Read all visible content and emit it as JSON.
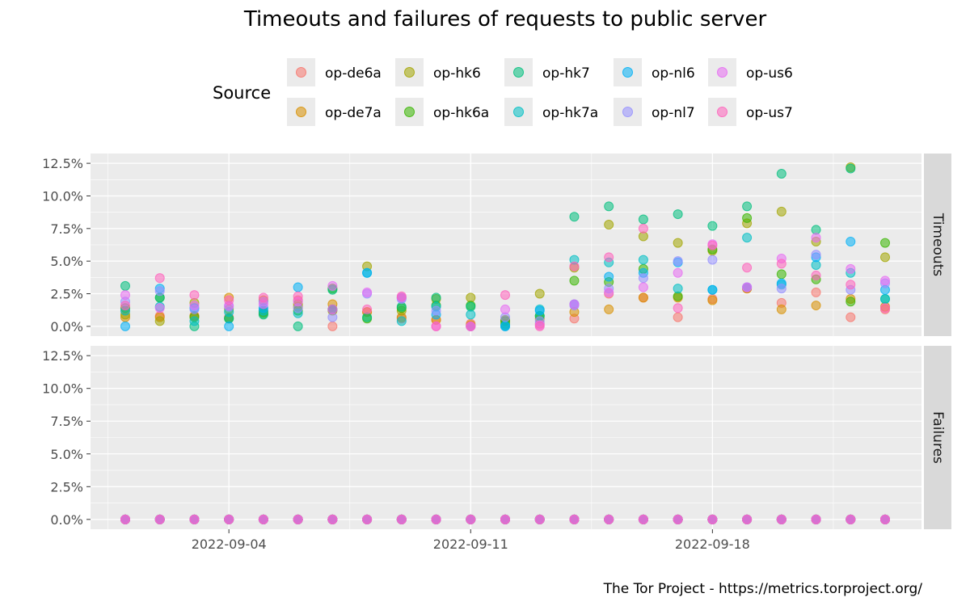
{
  "chart_data": {
    "type": "scatter",
    "title": "Timeouts and failures of requests to public server",
    "caption": "The Tor Project - https://metrics.torproject.org/",
    "legend": {
      "title": "Source",
      "placement": "top",
      "entries": [
        {
          "name": "op-de6a",
          "color": "#F8766D"
        },
        {
          "name": "op-de7a",
          "color": "#D89000"
        },
        {
          "name": "op-hk6",
          "color": "#A3A500"
        },
        {
          "name": "op-hk6a",
          "color": "#39B600"
        },
        {
          "name": "op-hk7",
          "color": "#00BF7D"
        },
        {
          "name": "op-hk7a",
          "color": "#00BFC4"
        },
        {
          "name": "op-nl6",
          "color": "#00B0F6"
        },
        {
          "name": "op-nl7",
          "color": "#9590FF"
        },
        {
          "name": "op-us6",
          "color": "#E76BF3"
        },
        {
          "name": "op-us7",
          "color": "#FF62BC"
        }
      ]
    },
    "x_dates": [
      "2022-09-01",
      "2022-09-02",
      "2022-09-03",
      "2022-09-04",
      "2022-09-05",
      "2022-09-06",
      "2022-09-07",
      "2022-09-08",
      "2022-09-09",
      "2022-09-10",
      "2022-09-11",
      "2022-09-12",
      "2022-09-13",
      "2022-09-14",
      "2022-09-15",
      "2022-09-16",
      "2022-09-17",
      "2022-09-18",
      "2022-09-19",
      "2022-09-20",
      "2022-09-21",
      "2022-09-22",
      "2022-09-23"
    ],
    "x_ticks": [
      "2022-09-04",
      "2022-09-11",
      "2022-09-18"
    ],
    "y_ticks": [
      "0.0%",
      "2.5%",
      "5.0%",
      "7.5%",
      "10.0%",
      "12.5%"
    ],
    "ylim": [
      0,
      0.125
    ],
    "grid": true,
    "panels": [
      {
        "label": "Timeouts",
        "series": [
          {
            "name": "op-de6a",
            "values": [
              0.012,
              0.008,
              0.008,
              0.007,
              0.012,
              0.02,
              0.0,
              0.011,
              0.006,
              0.005,
              0.002,
              0.004,
              0.002,
              0.006,
              0.025,
              0.022,
              0.007,
              0.021,
              0.029,
              0.018,
              0.026,
              0.007,
              0.013
            ]
          },
          {
            "name": "op-de7a",
            "values": [
              0.007,
              0.007,
              0.008,
              0.022,
              0.02,
              0.015,
              0.017,
              0.011,
              0.007,
              0.005,
              0.001,
              0.002,
              0.006,
              0.011,
              0.013,
              0.022,
              0.022,
              0.02,
              0.029,
              0.013,
              0.016,
              0.021,
              0.015
            ]
          },
          {
            "name": "op-hk6",
            "values": [
              0.009,
              0.004,
              0.018,
              0.013,
              0.011,
              0.017,
              0.012,
              0.046,
              0.012,
              0.021,
              0.022,
              0.005,
              0.025,
              0.045,
              0.078,
              0.069,
              0.064,
              0.058,
              0.079,
              0.088,
              0.065,
              0.122,
              0.053
            ]
          },
          {
            "name": "op-hk6a",
            "values": [
              0.014,
              0.022,
              0.007,
              0.006,
              0.01,
              0.012,
              0.029,
              0.006,
              0.014,
              0.016,
              0.016,
              0.004,
              0.008,
              0.035,
              0.034,
              0.044,
              0.023,
              0.059,
              0.083,
              0.04,
              0.036,
              0.019,
              0.064
            ]
          },
          {
            "name": "op-hk7",
            "values": [
              0.031,
              0.022,
              0.0,
              0.006,
              0.009,
              0.0,
              0.028,
              0.007,
              0.015,
              0.022,
              0.015,
              0.001,
              0.008,
              0.084,
              0.092,
              0.082,
              0.086,
              0.077,
              0.092,
              0.117,
              0.074,
              0.121,
              0.021
            ]
          },
          {
            "name": "op-hk7a",
            "values": [
              0.012,
              0.015,
              0.004,
              0.011,
              0.012,
              0.01,
              0.013,
              0.041,
              0.004,
              0.015,
              0.009,
              0.0,
              0.013,
              0.051,
              0.049,
              0.051,
              0.029,
              0.028,
              0.068,
              0.032,
              0.047,
              0.041,
              0.021
            ]
          },
          {
            "name": "op-nl6",
            "values": [
              0.0,
              0.029,
              0.014,
              0.0,
              0.014,
              0.03,
              0.013,
              0.041,
              0.022,
              0.009,
              0.0,
              0.0,
              0.012,
              0.017,
              0.038,
              0.041,
              0.049,
              0.028,
              0.03,
              0.033,
              0.053,
              0.065,
              0.028
            ]
          },
          {
            "name": "op-nl7",
            "values": [
              0.019,
              0.027,
              0.013,
              0.015,
              0.019,
              0.014,
              0.007,
              0.025,
              0.021,
              0.012,
              0.0,
              0.007,
              0.004,
              0.016,
              0.029,
              0.037,
              0.05,
              0.051,
              0.03,
              0.029,
              0.055,
              0.028,
              0.033
            ]
          },
          {
            "name": "op-us6",
            "values": [
              0.024,
              0.014,
              0.016,
              0.016,
              0.017,
              0.019,
              0.031,
              0.026,
              0.022,
              0.0,
              0.0,
              0.013,
              0.001,
              0.017,
              0.026,
              0.03,
              0.041,
              0.063,
              0.03,
              0.052,
              0.068,
              0.044,
              0.035
            ]
          },
          {
            "name": "op-us7",
            "values": [
              0.016,
              0.037,
              0.024,
              0.02,
              0.022,
              0.023,
              0.013,
              0.013,
              0.023,
              0.0,
              0.0,
              0.024,
              0.0,
              0.046,
              0.053,
              0.075,
              0.014,
              0.062,
              0.045,
              0.048,
              0.039,
              0.032,
              0.014
            ]
          }
        ]
      },
      {
        "label": "Failures",
        "series": [
          {
            "name": "op-de6a",
            "values": [
              0,
              0,
              0,
              0,
              0,
              0,
              0,
              0,
              0,
              0,
              0,
              0,
              0,
              0,
              0,
              0,
              0,
              0,
              0,
              0,
              0,
              0,
              0
            ]
          },
          {
            "name": "op-de7a",
            "values": [
              0,
              0,
              0,
              0,
              0,
              0,
              0,
              0,
              0,
              0,
              0,
              0,
              0,
              0,
              0,
              0,
              0,
              0,
              0,
              0,
              0,
              0,
              0
            ]
          },
          {
            "name": "op-hk6",
            "values": [
              0,
              0,
              0,
              0,
              0,
              0,
              0,
              0,
              0,
              0,
              0,
              0,
              0,
              0,
              0,
              0,
              0,
              0,
              0,
              0,
              0,
              0,
              0
            ]
          },
          {
            "name": "op-hk6a",
            "values": [
              0,
              0,
              0,
              0,
              0,
              0,
              0,
              0,
              0,
              0,
              0,
              0,
              0,
              0,
              0,
              0,
              0,
              0,
              0,
              0,
              0,
              0,
              0
            ]
          },
          {
            "name": "op-hk7",
            "values": [
              0,
              0,
              0,
              0,
              0,
              0,
              0,
              0,
              0,
              0,
              0,
              0,
              0,
              0,
              0,
              0,
              0,
              0,
              0,
              0,
              0,
              0,
              0
            ]
          },
          {
            "name": "op-hk7a",
            "values": [
              0,
              0,
              0,
              0,
              0,
              0,
              0,
              0,
              0,
              0,
              0,
              0,
              0,
              0,
              0,
              0,
              0,
              0,
              0,
              0,
              0,
              0,
              0
            ]
          },
          {
            "name": "op-nl6",
            "values": [
              0,
              0,
              0,
              0,
              0,
              0,
              0,
              0,
              0,
              0,
              0,
              0,
              0,
              0,
              0,
              0,
              0,
              0,
              0,
              0,
              0,
              0,
              0
            ]
          },
          {
            "name": "op-nl7",
            "values": [
              0,
              0,
              0,
              0,
              0,
              0,
              0,
              0,
              0,
              0,
              0,
              0,
              0,
              0,
              0,
              0,
              0,
              0,
              0,
              0,
              0,
              0,
              0
            ]
          },
          {
            "name": "op-us6",
            "values": [
              0,
              0,
              0,
              0,
              0,
              0,
              0,
              0,
              0,
              0,
              0,
              0,
              0,
              0,
              0,
              0,
              0,
              0,
              0,
              0,
              0,
              0,
              0
            ]
          },
          {
            "name": "op-us7",
            "values": [
              0,
              0,
              0,
              0,
              0,
              0,
              0,
              0,
              0,
              0,
              0,
              0,
              0,
              0,
              0,
              0,
              0,
              0,
              0,
              0,
              0,
              0,
              0
            ]
          }
        ]
      }
    ]
  }
}
